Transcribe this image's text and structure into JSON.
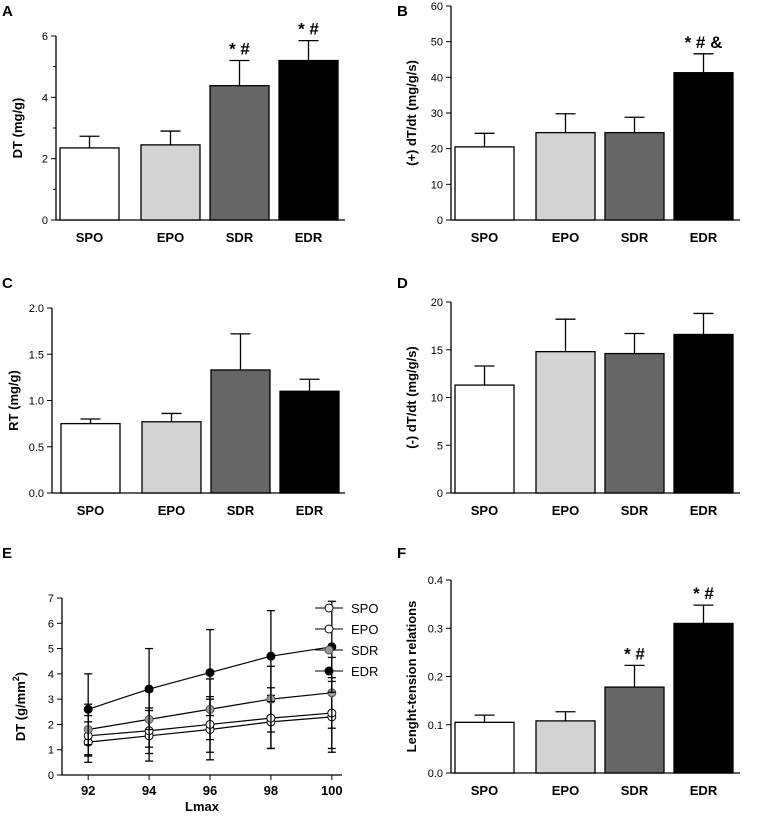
{
  "colors": {
    "SPO": "#ffffff",
    "EPO": "#d3d3d3",
    "SDR": "#666666",
    "EDR": "#000000",
    "E_SPO": "#ffffff",
    "E_EPO": "#ffffff",
    "E_SDR": "#9a9a9a",
    "E_EDR": "#000000"
  },
  "chart_data": [
    {
      "id": "A",
      "panel_label": "A",
      "type": "bar",
      "categories": [
        "SPO",
        "EPO",
        "SDR",
        "EDR"
      ],
      "values": [
        2.35,
        2.45,
        4.38,
        5.2
      ],
      "errors": [
        0.38,
        0.45,
        0.82,
        0.65
      ],
      "annotations": [
        "",
        "",
        "* #",
        "* #"
      ],
      "ylabel": "DT (mg/g)",
      "ylim": [
        0,
        6
      ],
      "yticks": [
        0,
        2,
        4,
        6
      ],
      "ytick_labels": [
        "0",
        "2",
        "4",
        "6"
      ],
      "minor_ticks": [
        1,
        3,
        5
      ]
    },
    {
      "id": "B",
      "panel_label": "B",
      "type": "bar",
      "categories": [
        "SPO",
        "EPO",
        "SDR",
        "EDR"
      ],
      "values": [
        20.5,
        24.5,
        24.5,
        41.3
      ],
      "errors": [
        3.8,
        5.3,
        4.3,
        5.3
      ],
      "annotations": [
        "",
        "",
        "",
        "* # &"
      ],
      "ylabel": "(+) dT/dt  (mg/g/s)",
      "ylim": [
        0,
        60
      ],
      "yticks": [
        0,
        10,
        20,
        30,
        40,
        50,
        60
      ],
      "ytick_labels": [
        "0",
        "10",
        "20",
        "30",
        "40",
        "50",
        "60"
      ],
      "minor_ticks": []
    },
    {
      "id": "C",
      "panel_label": "C",
      "type": "bar",
      "categories": [
        "SPO",
        "EPO",
        "SDR",
        "EDR"
      ],
      "values": [
        0.75,
        0.77,
        1.33,
        1.1
      ],
      "errors": [
        0.05,
        0.09,
        0.39,
        0.13
      ],
      "annotations": [
        "",
        "",
        "",
        ""
      ],
      "ylabel": "RT (mg/g)",
      "ylim": [
        0,
        2.0
      ],
      "yticks": [
        0,
        0.5,
        1.0,
        1.5,
        2.0
      ],
      "ytick_labels": [
        "0.0",
        "0.5",
        "1.0",
        "1.5",
        "2.0"
      ],
      "minor_ticks": []
    },
    {
      "id": "D",
      "panel_label": "D",
      "type": "bar",
      "categories": [
        "SPO",
        "EPO",
        "SDR",
        "EDR"
      ],
      "values": [
        11.3,
        14.8,
        14.6,
        16.6
      ],
      "errors": [
        2.0,
        3.4,
        2.1,
        2.2
      ],
      "annotations": [
        "",
        "",
        "",
        ""
      ],
      "ylabel": "(-) dT/dt (mg/g/s)",
      "ylim": [
        0,
        20
      ],
      "yticks": [
        0,
        5,
        10,
        15,
        20
      ],
      "ytick_labels": [
        "0",
        "5",
        "10",
        "15",
        "20"
      ],
      "minor_ticks": []
    },
    {
      "id": "E",
      "panel_label": "E",
      "type": "line",
      "x": [
        92,
        94,
        96,
        98,
        100
      ],
      "xtick_labels": [
        "92",
        "94",
        "96",
        "98",
        "100"
      ],
      "xlabel": "Lmax",
      "ylabel_main": "DT (g/mm",
      "ylabel_sup": "2",
      "ylabel_end": ")",
      "ylim": [
        0,
        7
      ],
      "yticks": [
        0,
        1,
        2,
        3,
        4,
        5,
        6,
        7
      ],
      "ytick_labels": [
        "0",
        "1",
        "2",
        "3",
        "4",
        "5",
        "6",
        "7"
      ],
      "xlim": [
        91.6,
        100.4
      ],
      "series": [
        {
          "name": "SPO",
          "values": [
            1.3,
            1.55,
            1.8,
            2.1,
            2.3
          ],
          "errors": [
            0.8,
            1.0,
            1.2,
            1.05,
            1.4
          ],
          "marker": "open"
        },
        {
          "name": "EPO",
          "values": [
            1.55,
            1.75,
            2.0,
            2.25,
            2.45
          ],
          "errors": [
            0.8,
            0.9,
            1.1,
            1.2,
            1.4
          ],
          "marker": "open"
        },
        {
          "name": "SDR",
          "values": [
            1.8,
            2.2,
            2.6,
            3.0,
            3.25
          ],
          "errors": [
            1.0,
            1.1,
            1.2,
            1.3,
            1.4
          ],
          "marker": "gray"
        },
        {
          "name": "EDR",
          "values": [
            2.6,
            3.4,
            4.05,
            4.7,
            5.07
          ],
          "errors": [
            1.4,
            1.6,
            1.7,
            1.8,
            1.8
          ],
          "marker": "filled"
        }
      ],
      "legend": [
        "SPO",
        "EPO",
        "SDR",
        "EDR"
      ]
    },
    {
      "id": "F",
      "panel_label": "F",
      "type": "bar",
      "categories": [
        "SPO",
        "EPO",
        "SDR",
        "EDR"
      ],
      "values": [
        0.105,
        0.108,
        0.178,
        0.31
      ],
      "errors": [
        0.015,
        0.019,
        0.045,
        0.038
      ],
      "annotations": [
        "",
        "",
        "* #",
        "* #"
      ],
      "ylabel": "Lenght-tension relations",
      "ylim": [
        0,
        0.4
      ],
      "yticks": [
        0,
        0.1,
        0.2,
        0.3,
        0.4
      ],
      "ytick_labels": [
        "0.0",
        "0.1",
        "0.2",
        "0.3",
        "0.4"
      ],
      "minor_ticks": []
    }
  ]
}
